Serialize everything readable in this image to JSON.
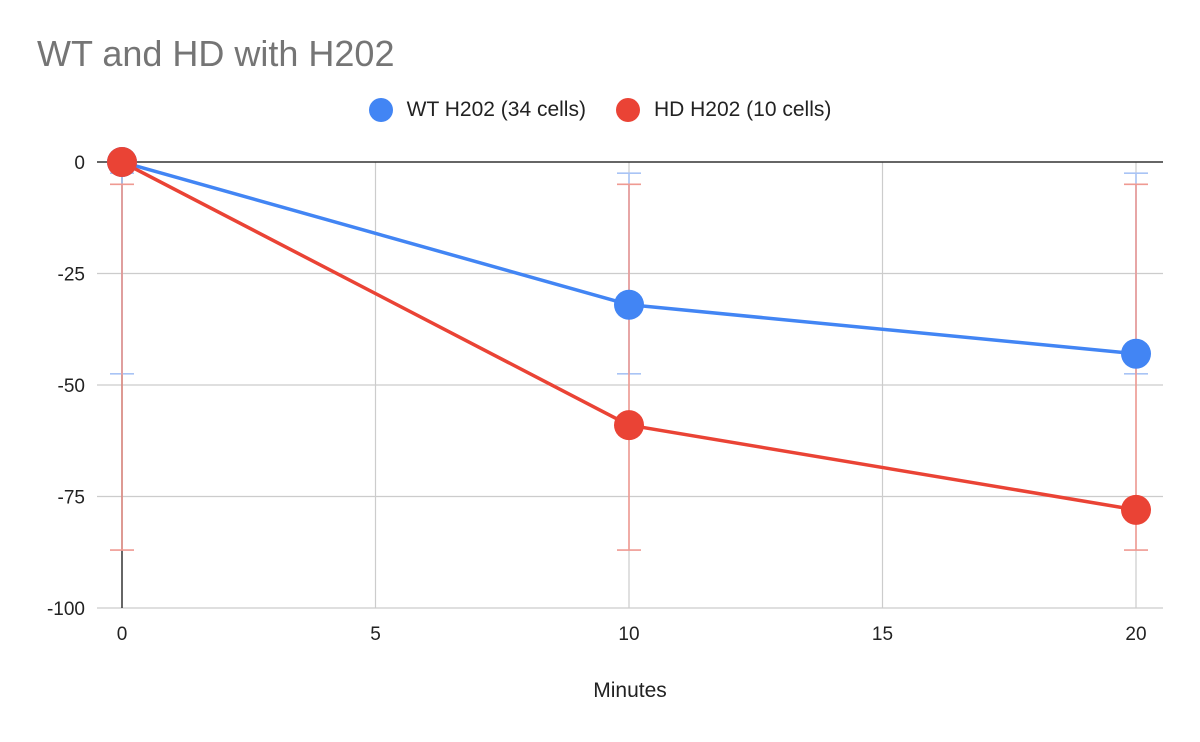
{
  "chart_data": {
    "type": "line",
    "title": "WT and HD with H202",
    "xlabel": "Minutes",
    "ylabel": "",
    "xlim": [
      0,
      20
    ],
    "ylim": [
      -100,
      0
    ],
    "x_ticks": [
      0,
      5,
      10,
      15,
      20
    ],
    "y_ticks": [
      0,
      -25,
      -50,
      -75,
      -100
    ],
    "x_tick_labels": [
      "0",
      "5",
      "10",
      "15",
      "20"
    ],
    "y_tick_labels": [
      "0",
      "-25",
      "-50",
      "-75",
      "-100"
    ],
    "grid": true,
    "legend_position": "top",
    "series": [
      {
        "name": "WT H202 (34 cells)",
        "color": "#4285f4",
        "x": [
          0,
          10,
          20
        ],
        "values": [
          0,
          -32,
          -43
        ],
        "error_low": [
          -47.5,
          -47.5,
          -47.5
        ],
        "error_high": [
          -2.5,
          -2.5,
          -2.5
        ]
      },
      {
        "name": "HD H202 (10 cells)",
        "color": "#ea4335",
        "x": [
          0,
          10,
          20
        ],
        "values": [
          0,
          -59,
          -78
        ],
        "error_low": [
          -87,
          -87,
          -87
        ],
        "error_high": [
          -5,
          -5,
          -5
        ]
      }
    ]
  }
}
